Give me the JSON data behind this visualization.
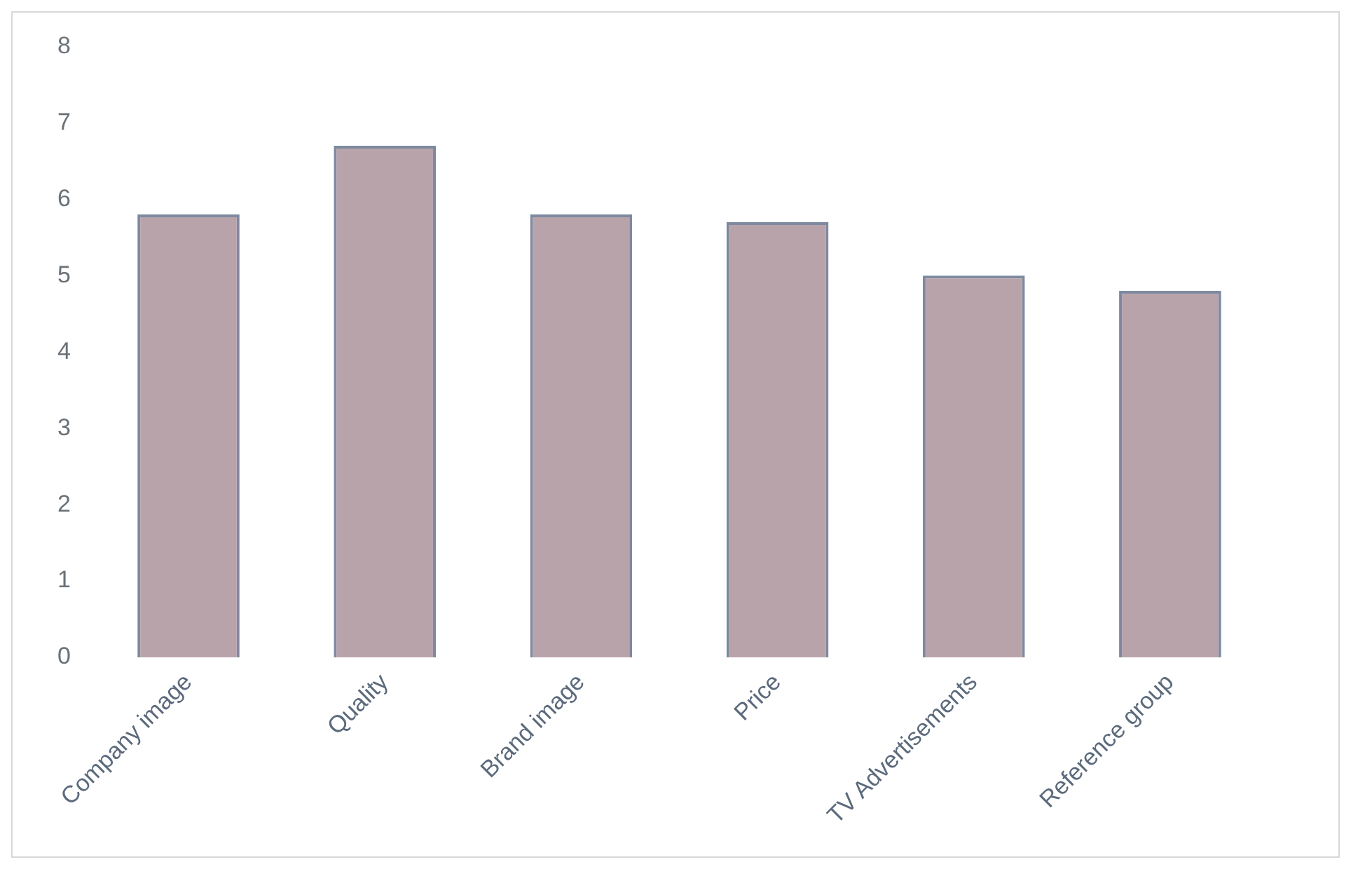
{
  "chart_data": {
    "type": "bar",
    "categories": [
      "Company image",
      "Quality",
      "Brand image",
      "Price",
      "TV Advertisements",
      "Reference group"
    ],
    "values": [
      5.8,
      6.7,
      5.8,
      5.7,
      5.0,
      4.8
    ],
    "color": "#b9a3ab",
    "ylim": [
      0,
      8
    ],
    "yticks": [
      0,
      1,
      2,
      3,
      4,
      5,
      6,
      7,
      8
    ],
    "grid": false,
    "legend": false
  }
}
